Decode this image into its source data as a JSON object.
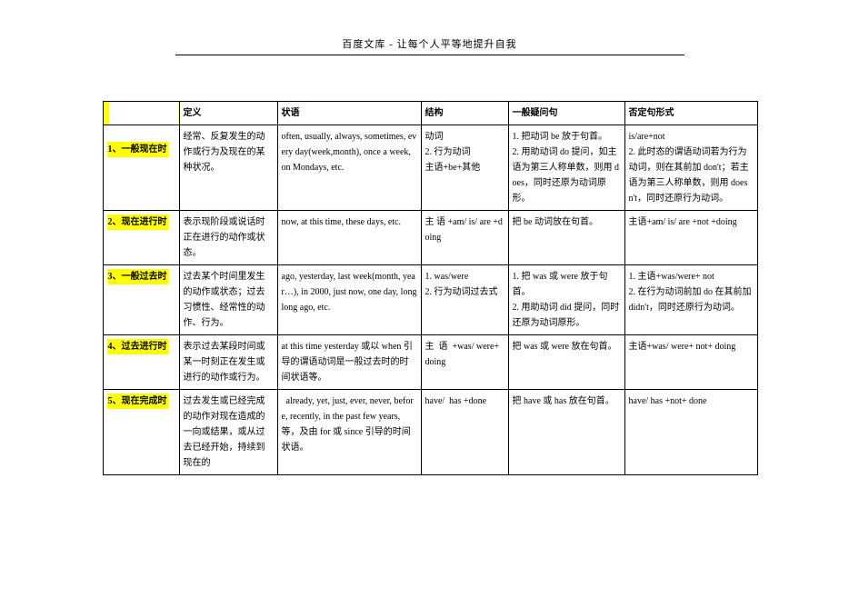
{
  "header": "百度文库 - 让每个人平等地提升自我",
  "columns": [
    "",
    "定义",
    "状语",
    "结构",
    "一般疑问句",
    "否定句形式"
  ],
  "rows": [
    {
      "name": "1、一般现在时",
      "def": "经常、反复发生的动作或行为及现在的某种状况。",
      "adv": "often, usually, always, sometimes, every day(week,month), once a week, on Mondays, etc.",
      "str": "动词\n2. 行为动词\n主语+be+其他",
      "q": "1. 把动词 be 放于句首。\n2. 用助动词 do 提问，如主语为第三人称单数，则用 does，同时还原为动词原形。",
      "neg": "is/are+not\n2. 此时态的谓语动词若为行为动词，则在其前加 don't；若主语为第三人称单数，则用 doesn't，同时还原行为动词。"
    },
    {
      "name": "2、现在进行时",
      "def": "表示现阶段或说话时正在进行的动作或状态。",
      "adv": "now, at this time, these days, etc.",
      "str": "主 语 +am/ is/ are +doing",
      "q": "把 be 动词放在句首。",
      "neg": "主语+am/ is/ are +not +doing"
    },
    {
      "name": "3、一般过去时",
      "def": "过去某个时间里发生的动作或状态；过去习惯性、经常性的动作、行为。",
      "adv": "ago, yesterday, last week(month, year…), in 2000, just now, one day, long long ago, etc.",
      "str": "1. was/were\n2. 行为动词过去式",
      "q": "1. 把 was 或 were 放于句首。\n2. 用助动词 did 提问，同时还原为动词原形。",
      "neg": "1. 主语+was/were+ not\n2. 在行为动词前加 do 在其前加 didn't，同时还原行为动词。"
    },
    {
      "name": "4、过去进行时",
      "def": "表示过去某段时间或某一时刻正在发生或进行的动作或行为。",
      "adv": "at this time yesterday 或以 when 引导的谓语动词是一般过去时的时间状语等。",
      "str": "主  语  +was/ were+ doing",
      "q": "把 was 或 were 放在句首。",
      "neg": "主语+was/ were+ not+ doing"
    },
    {
      "name": "5、现在完成时",
      "def": "过去发生或已经完成的动作对现在造成的一向或结果，或从过去已经开始，持续到现在的",
      "adv": "  already, yet, just, ever, never, before, recently, in the past few years, 等，及由 for 或 since 引导的时间状语。",
      "str": "have/  has +done",
      "q": "把 have 或 has 放在句首。",
      "neg": "have/ has +not+ done"
    }
  ]
}
